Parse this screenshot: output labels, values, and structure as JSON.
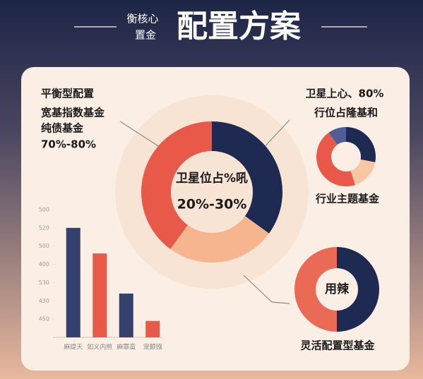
{
  "header": {
    "small": [
      "衡核心",
      "置金"
    ],
    "title": "配置方案"
  },
  "chart_data": [
    {
      "type": "donut",
      "values": [
        35,
        25,
        40
      ],
      "colors": [
        "#1f2a52",
        "#f6b48f",
        "#e9594a"
      ],
      "center_label": [
        "卫星位占%吼",
        "20%-30%"
      ],
      "annotation": [
        "平衡型配置",
        "宽基指数基金",
        "纯债基金",
        "70%-80%"
      ]
    },
    {
      "type": "donut",
      "values": [
        28,
        17,
        45,
        10
      ],
      "colors": [
        "#1f2a52",
        "#f8c6a3",
        "#e9594a",
        "#4f5f96"
      ],
      "center_label": [],
      "annotation": [
        "卫星上心、80%",
        "行位占隆基和",
        "行业主题基金"
      ]
    },
    {
      "type": "donut",
      "values": [
        50,
        50
      ],
      "colors": [
        "#1f2a52",
        "#ea6a55"
      ],
      "center_label": [
        "用辣"
      ],
      "annotation": [
        "灵活配置型基金"
      ]
    },
    {
      "type": "bar",
      "categories": [
        "麻提天",
        "如义内煎",
        "麻罪蛮",
        "宠颤镪"
      ],
      "values": [
        6,
        4.6,
        2.4,
        0.9
      ],
      "colors": [
        "#34406e",
        "#e9594a",
        "#34406e",
        "#e9594a"
      ],
      "ylim": [
        0,
        7
      ],
      "yticks": [
        {
          "value": 7,
          "label": "500"
        },
        {
          "value": 6,
          "label": "520"
        },
        {
          "value": 5,
          "label": "500"
        },
        {
          "value": 4,
          "label": "400"
        },
        {
          "value": 3,
          "label": "530"
        },
        {
          "value": 2,
          "label": "430"
        },
        {
          "value": 1,
          "label": "450"
        }
      ]
    }
  ]
}
